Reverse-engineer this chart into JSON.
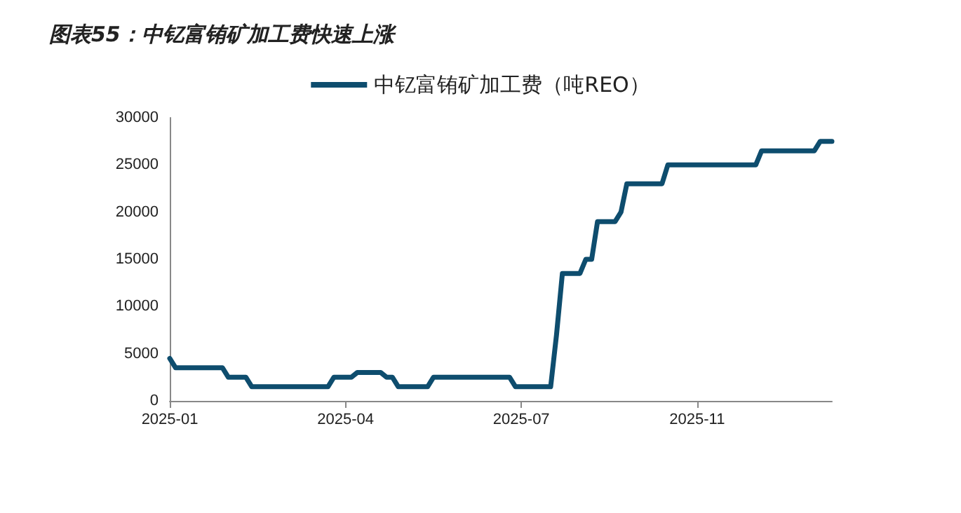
{
  "chart_data": {
    "type": "line",
    "title": "图表55：中钇富铕矿加工费快速上涨",
    "categories": [
      "2025-01",
      null,
      null,
      null,
      null,
      null,
      null,
      null,
      null,
      null,
      null,
      null,
      null,
      null,
      null,
      null,
      null,
      null,
      null,
      null,
      null,
      null,
      null,
      null,
      null,
      null,
      null,
      null,
      null,
      null,
      "2025-04",
      null,
      null,
      null,
      null,
      null,
      null,
      null,
      null,
      null,
      null,
      null,
      null,
      null,
      null,
      null,
      null,
      null,
      null,
      null,
      null,
      null,
      null,
      null,
      null,
      null,
      null,
      null,
      null,
      null,
      "2025-07",
      null,
      null,
      null,
      null,
      null,
      null,
      null,
      null,
      null,
      null,
      null,
      null,
      null,
      null,
      null,
      null,
      null,
      null,
      null,
      null,
      null,
      null,
      null,
      null,
      null,
      null,
      null,
      null,
      null,
      "2025-11",
      null,
      null,
      null,
      null,
      null,
      null,
      null,
      null,
      null,
      null,
      null,
      null,
      null,
      null,
      null,
      null,
      null,
      null,
      null,
      null,
      null,
      null,
      null
    ],
    "series": [
      {
        "name": "中钇富铕矿加工费（吨REO）",
        "color": "#0e4d6e",
        "values": [
          4500,
          3500,
          3500,
          3500,
          3500,
          3500,
          3500,
          3500,
          3500,
          3500,
          2500,
          2500,
          2500,
          2500,
          1500,
          1500,
          1500,
          1500,
          1500,
          1500,
          1500,
          1500,
          1500,
          1500,
          1500,
          1500,
          1500,
          1500,
          2500,
          2500,
          2500,
          2500,
          3000,
          3000,
          3000,
          3000,
          3000,
          2500,
          2500,
          1500,
          1500,
          1500,
          1500,
          1500,
          1500,
          2500,
          2500,
          2500,
          2500,
          2500,
          2500,
          2500,
          2500,
          2500,
          2500,
          2500,
          2500,
          2500,
          2500,
          1500,
          1500,
          1500,
          1500,
          1500,
          1500,
          1500,
          7000,
          13500,
          13500,
          13500,
          13500,
          15000,
          15000,
          19000,
          19000,
          19000,
          19000,
          20000,
          23000,
          23000,
          23000,
          23000,
          23000,
          23000,
          23000,
          25000,
          25000,
          25000,
          25000,
          25000,
          25000,
          25000,
          25000,
          25000,
          25000,
          25000,
          25000,
          25000,
          25000,
          25000,
          25000,
          26500,
          26500,
          26500,
          26500,
          26500,
          26500,
          26500,
          26500,
          26500,
          26500,
          27500,
          27500,
          27500
        ]
      }
    ],
    "ylim": [
      0,
      30000
    ],
    "yticks": [
      0,
      5000,
      10000,
      15000,
      20000,
      25000,
      30000
    ],
    "grid": false,
    "legend": "top",
    "marker": "none",
    "line_style": "solid"
  }
}
